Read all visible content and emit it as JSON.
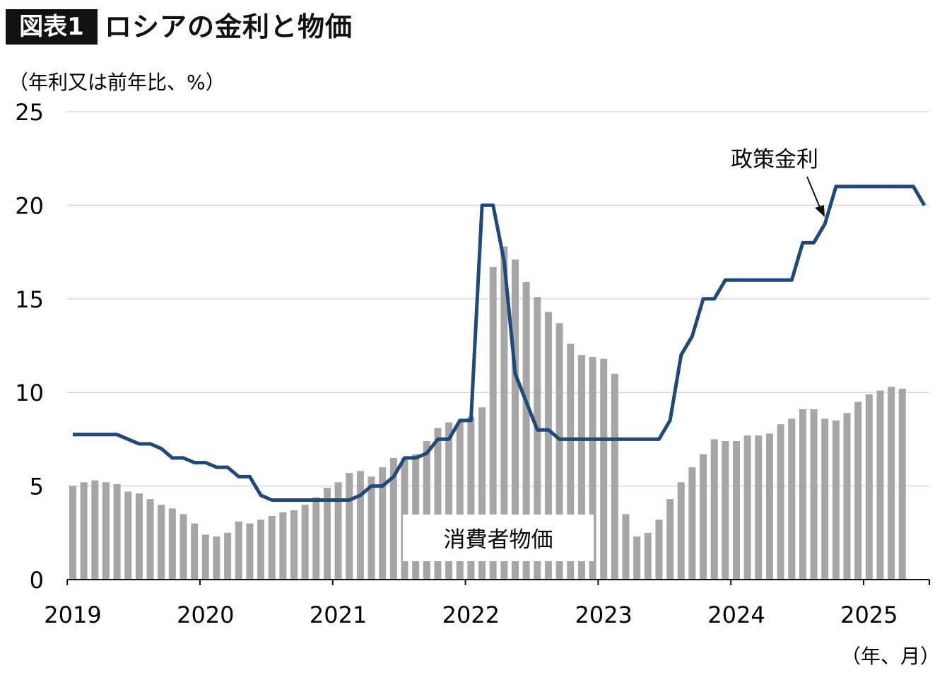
{
  "title": {
    "badge": "図表1",
    "text": "ロシアの金利と物価"
  },
  "chart_data": {
    "type": "bar+line",
    "title": "ロシアの金利と物価",
    "ylabel": "（年利又は前年比、%）",
    "xlabel": "（年、月）",
    "ylim": [
      0,
      25
    ],
    "yticks": [
      0,
      5,
      10,
      15,
      20,
      25
    ],
    "grid": true,
    "x_tick_labels": [
      "2019",
      "2020",
      "2021",
      "2022",
      "2023",
      "2024",
      "2025"
    ],
    "start_month": "2019-01",
    "series": [
      {
        "name": "消費者物価",
        "type": "bar",
        "color": "#a6a6a6",
        "values": [
          5.0,
          5.2,
          5.3,
          5.2,
          5.1,
          4.7,
          4.6,
          4.3,
          4.0,
          3.8,
          3.5,
          3.0,
          2.4,
          2.3,
          2.5,
          3.1,
          3.0,
          3.2,
          3.4,
          3.6,
          3.7,
          4.0,
          4.4,
          4.9,
          5.2,
          5.7,
          5.8,
          5.5,
          6.0,
          6.5,
          6.5,
          6.7,
          7.4,
          8.1,
          8.4,
          8.4,
          8.7,
          9.2,
          16.7,
          17.8,
          17.1,
          15.9,
          15.1,
          14.3,
          13.7,
          12.6,
          12.0,
          11.9,
          11.8,
          11.0,
          3.5,
          2.3,
          2.5,
          3.2,
          4.3,
          5.2,
          6.0,
          6.7,
          7.5,
          7.4,
          7.4,
          7.7,
          7.7,
          7.8,
          8.3,
          8.6,
          9.1,
          9.1,
          8.6,
          8.5,
          8.9,
          9.5,
          9.9,
          10.1,
          10.3,
          10.2
        ]
      },
      {
        "name": "政策金利",
        "type": "line",
        "color": "#1f497d",
        "values": [
          7.75,
          7.75,
          7.75,
          7.75,
          7.75,
          7.5,
          7.25,
          7.25,
          7.0,
          6.5,
          6.5,
          6.25,
          6.25,
          6.0,
          6.0,
          5.5,
          5.5,
          4.5,
          4.25,
          4.25,
          4.25,
          4.25,
          4.25,
          4.25,
          4.25,
          4.25,
          4.5,
          5.0,
          5.0,
          5.5,
          6.5,
          6.5,
          6.75,
          7.5,
          7.5,
          8.5,
          8.5,
          20,
          20,
          17,
          11,
          9.5,
          8,
          8,
          7.5,
          7.5,
          7.5,
          7.5,
          7.5,
          7.5,
          7.5,
          7.5,
          7.5,
          7.5,
          8.5,
          12,
          13,
          15,
          15,
          16,
          16,
          16,
          16,
          16,
          16,
          16,
          18,
          18,
          19,
          21,
          21,
          21,
          21,
          21,
          21,
          21,
          21,
          20
        ]
      }
    ],
    "annotations": {
      "line_label": "政策金利",
      "bar_label": "消費者物価"
    }
  }
}
